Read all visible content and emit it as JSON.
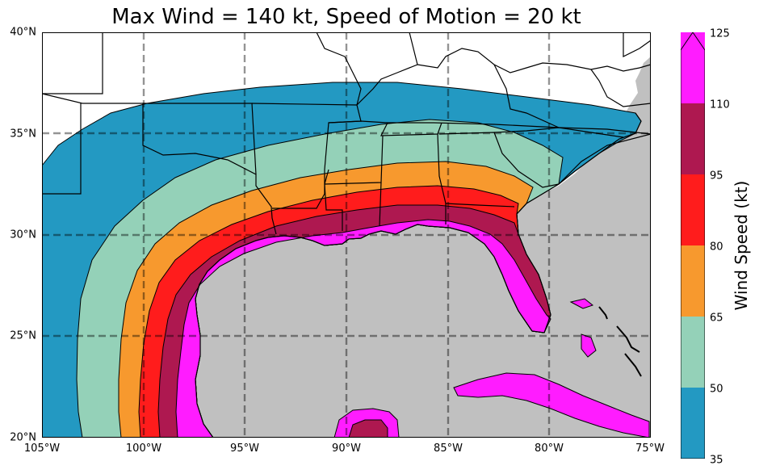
{
  "title": "Max Wind = 140 kt, Speed of Motion = 20 kt",
  "x_ticks": [
    "105°W",
    "100°W",
    "95°W",
    "90°W",
    "85°W",
    "80°W",
    "75°W"
  ],
  "y_ticks": [
    "40°N",
    "35°N",
    "30°N",
    "25°N",
    "20°N"
  ],
  "colorbar": {
    "label": "Wind Speed (kt)",
    "levels": [
      "125",
      "110",
      "95",
      "80",
      "65",
      "50",
      "35"
    ],
    "colors": [
      "#ff1cff",
      "#ae1850",
      "#ff1c1c",
      "#f7992e",
      "#94d1b8",
      "#2399c2"
    ]
  },
  "map": {
    "lon_range": [
      -105,
      -75
    ],
    "lat_range": [
      20,
      40
    ],
    "ocean_color": "#c0c0c0",
    "land_color": "#ffffff",
    "gridline_style": "dashed"
  }
}
